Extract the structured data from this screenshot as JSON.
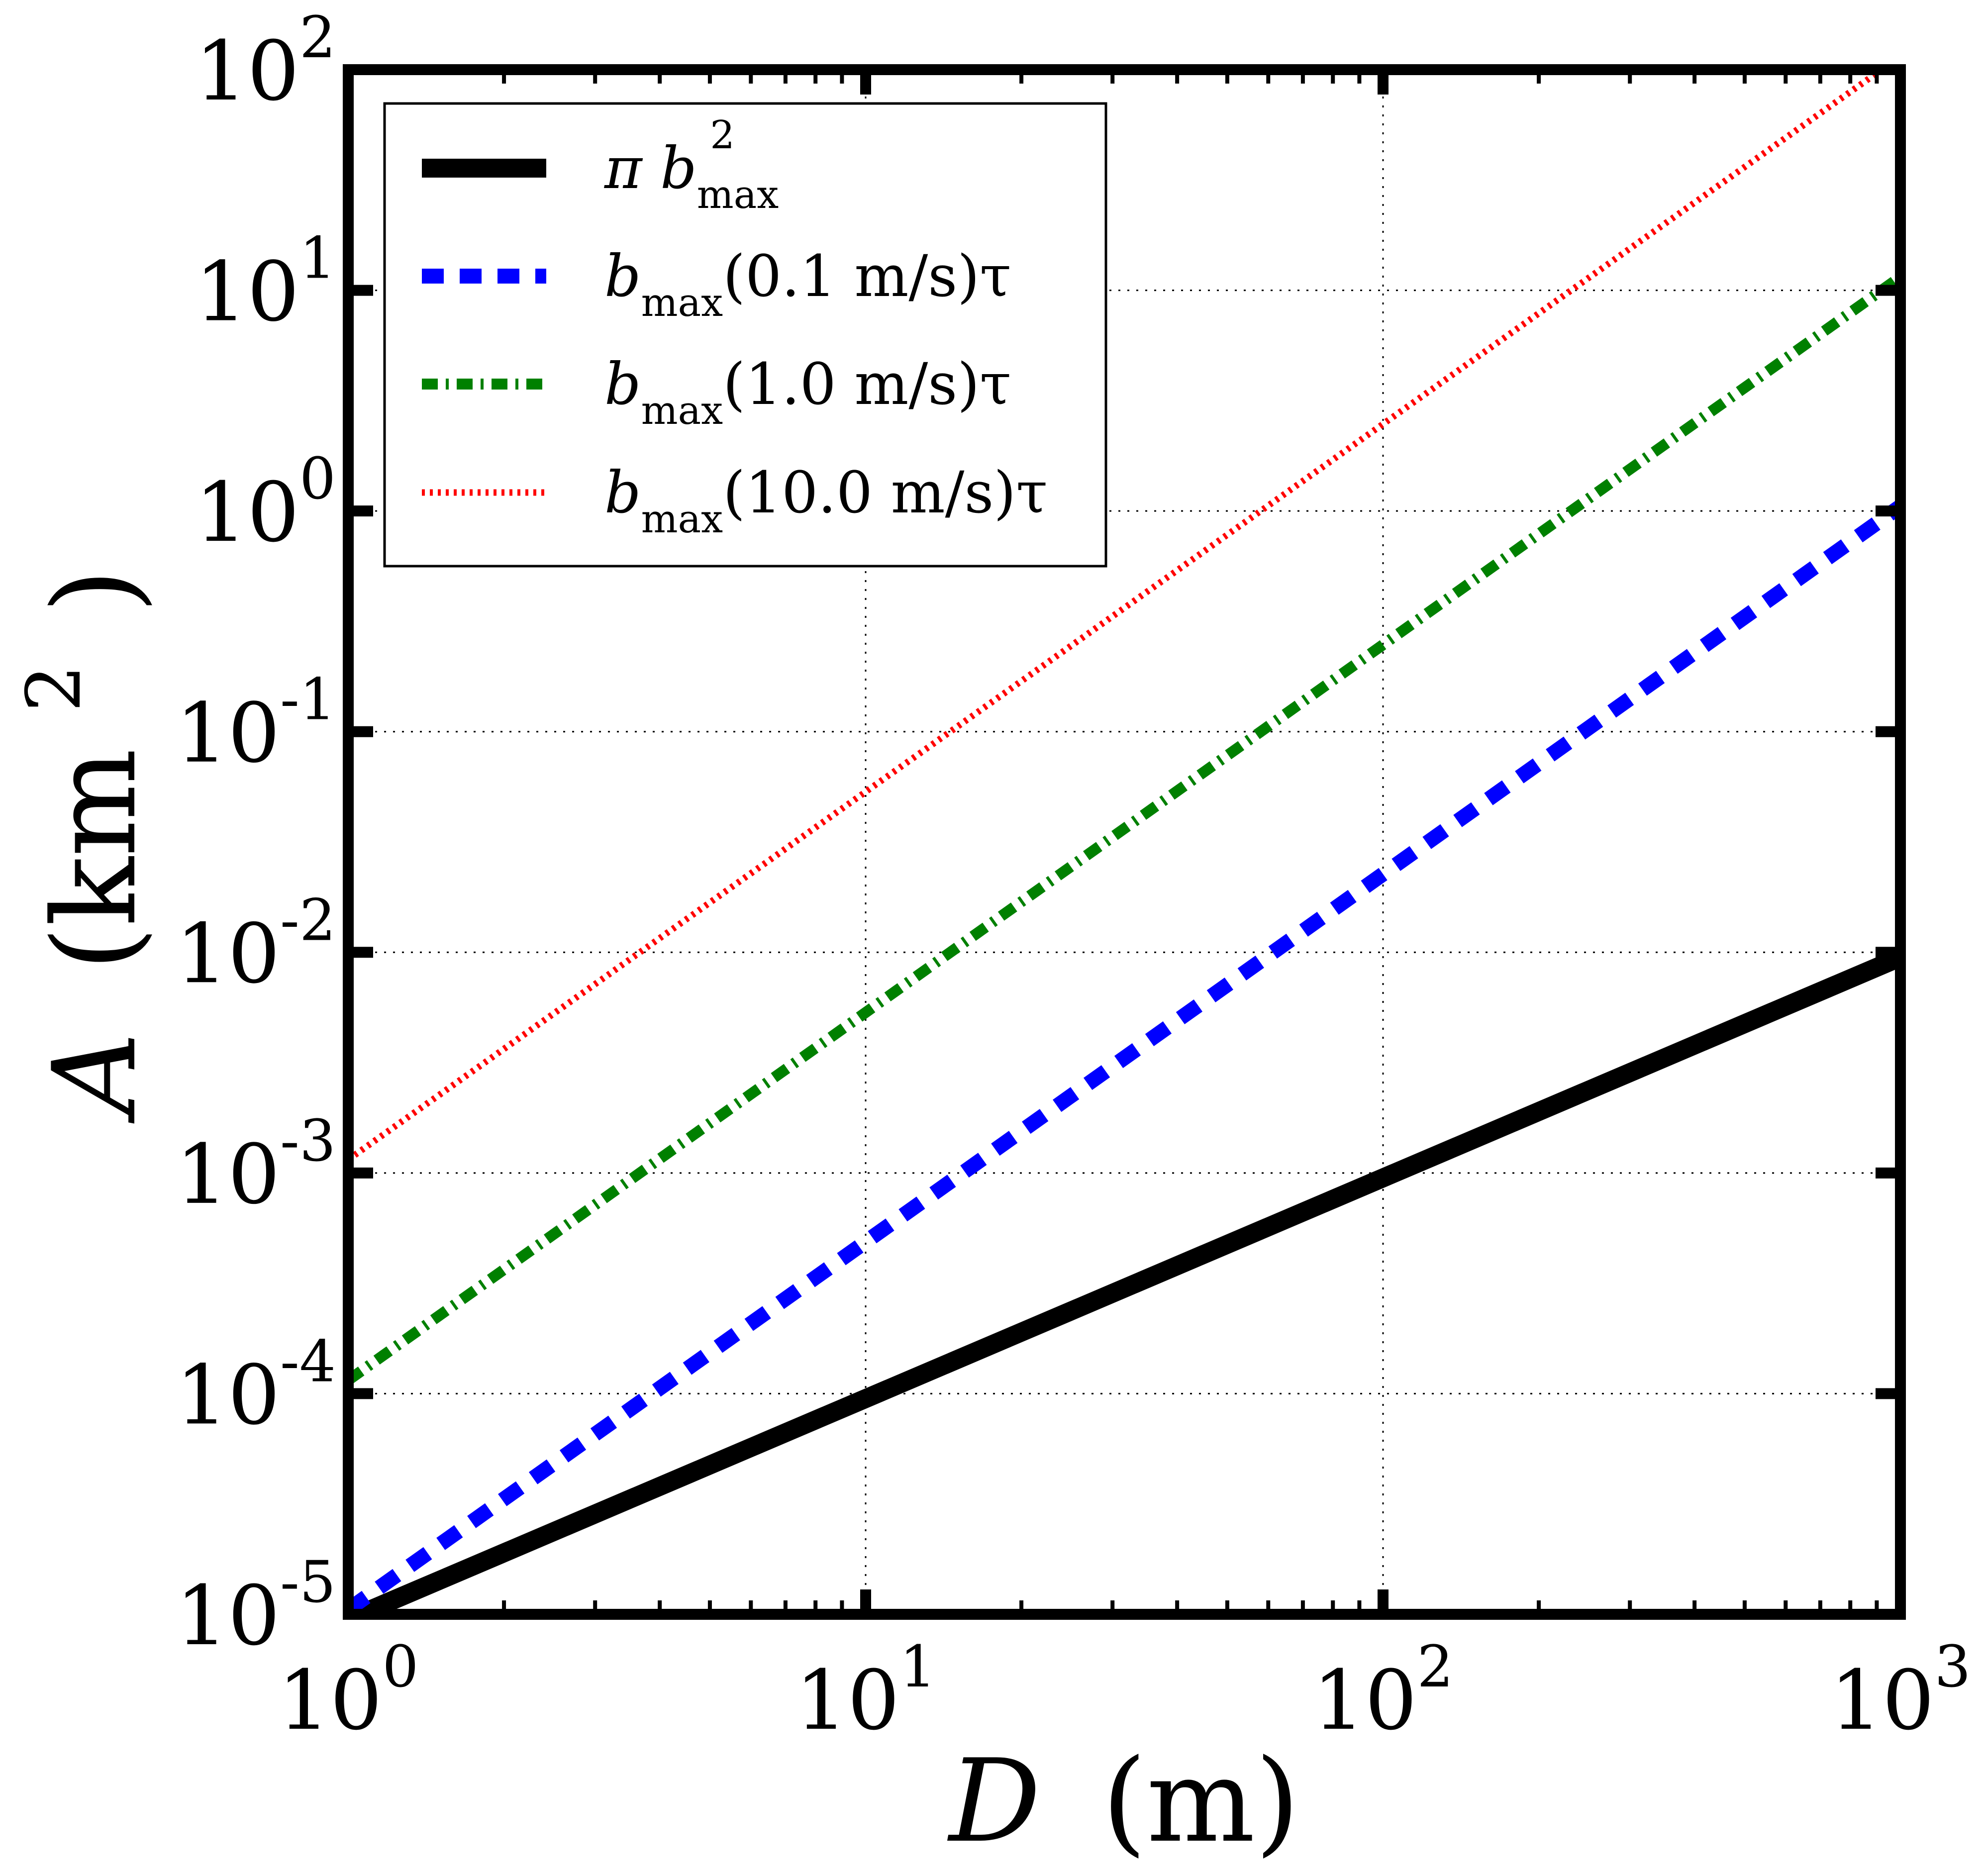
{
  "chart_data": {
    "type": "line",
    "xscale": "log",
    "yscale": "log",
    "xlim": [
      1,
      1000
    ],
    "ylim": [
      1e-05,
      100
    ],
    "grid": true,
    "legend_position": "top-left",
    "xlabel": {
      "var": "D",
      "unit": "(m)"
    },
    "ylabel": {
      "var": "A",
      "unit": "(km",
      "unit_exp": "2",
      "close": ")"
    },
    "x_ticks": [
      {
        "value": 1,
        "base": "10",
        "exp": "0"
      },
      {
        "value": 10,
        "base": "10",
        "exp": "1"
      },
      {
        "value": 100,
        "base": "10",
        "exp": "2"
      },
      {
        "value": 1000,
        "base": "10",
        "exp": "3"
      }
    ],
    "y_ticks": [
      {
        "value": 1e-05,
        "base": "10",
        "exp": "-5"
      },
      {
        "value": 0.0001,
        "base": "10",
        "exp": "-4"
      },
      {
        "value": 0.001,
        "base": "10",
        "exp": "-3"
      },
      {
        "value": 0.01,
        "base": "10",
        "exp": "-2"
      },
      {
        "value": 0.1,
        "base": "10",
        "exp": "-1"
      },
      {
        "value": 1,
        "base": "10",
        "exp": "0"
      },
      {
        "value": 10,
        "base": "10",
        "exp": "1"
      },
      {
        "value": 100,
        "base": "10",
        "exp": "2"
      }
    ],
    "series": [
      {
        "name": "pi_bmax_squared",
        "legend": {
          "prefix": "π b",
          "sup": "2",
          "sub": "max",
          "suffix": ""
        },
        "color": "#000000",
        "style": "solid",
        "x": [
          1,
          1000
        ],
        "y": [
          9.5e-06,
          0.0095
        ]
      },
      {
        "name": "bmax_0.1",
        "legend": {
          "prefix": "b",
          "sup": "",
          "sub": "max",
          "suffix": "(0.1 m/s)τ"
        },
        "color": "#0000ff",
        "style": "dashed",
        "x": [
          1,
          1000
        ],
        "y": [
          1.05e-05,
          1.05
        ]
      },
      {
        "name": "bmax_1.0",
        "legend": {
          "prefix": "b",
          "sup": "",
          "sub": "max",
          "suffix": "(1.0 m/s)τ"
        },
        "color": "#008000",
        "style": "dashdot",
        "x": [
          1,
          1000
        ],
        "y": [
          0.000115,
          11.5
        ]
      },
      {
        "name": "bmax_10.0",
        "legend": {
          "prefix": "b",
          "sup": "",
          "sub": "max",
          "suffix": "(10.0 m/s)τ"
        },
        "color": "#ff0000",
        "style": "dotted",
        "x": [
          1,
          1000
        ],
        "y": [
          0.00115,
          115
        ]
      }
    ]
  }
}
